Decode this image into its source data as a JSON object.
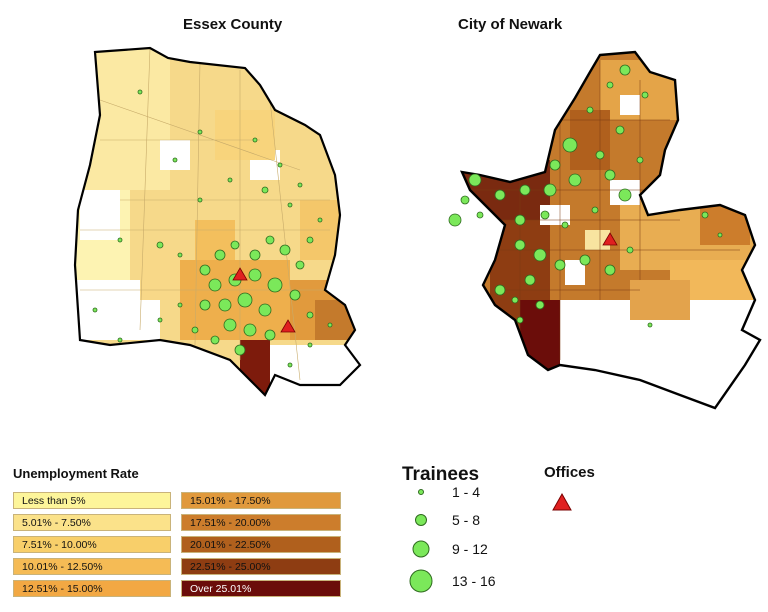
{
  "maps": {
    "left_title": "Essex County",
    "right_title": "City of Newark"
  },
  "unemployment_legend": {
    "title": "Unemployment Rate",
    "classes": [
      {
        "label": "Less than 5%",
        "color": "#fdf59a"
      },
      {
        "label": "5.01% - 7.50%",
        "color": "#fbe28a"
      },
      {
        "label": "7.51% - 10.00%",
        "color": "#f8cf6a"
      },
      {
        "label": "10.01% - 12.50%",
        "color": "#f5bb55"
      },
      {
        "label": "12.51% - 15.00%",
        "color": "#f2a843"
      },
      {
        "label": "15.01% - 17.50%",
        "color": "#e0993c"
      },
      {
        "label": "17.51% - 20.00%",
        "color": "#cc7d2c"
      },
      {
        "label": "20.01% - 22.50%",
        "color": "#b0601d"
      },
      {
        "label": "22.51% - 25.00%",
        "color": "#8e3d12"
      },
      {
        "label": "Over 25.01%",
        "color": "#6b0d0a"
      }
    ]
  },
  "trainees_legend": {
    "title": "Trainees",
    "classes": [
      "1 - 4",
      "5 - 8",
      "9 - 12",
      "13 - 16"
    ],
    "color": "#7be85a"
  },
  "offices_legend": {
    "title": "Offices",
    "color": "#e02020"
  }
}
